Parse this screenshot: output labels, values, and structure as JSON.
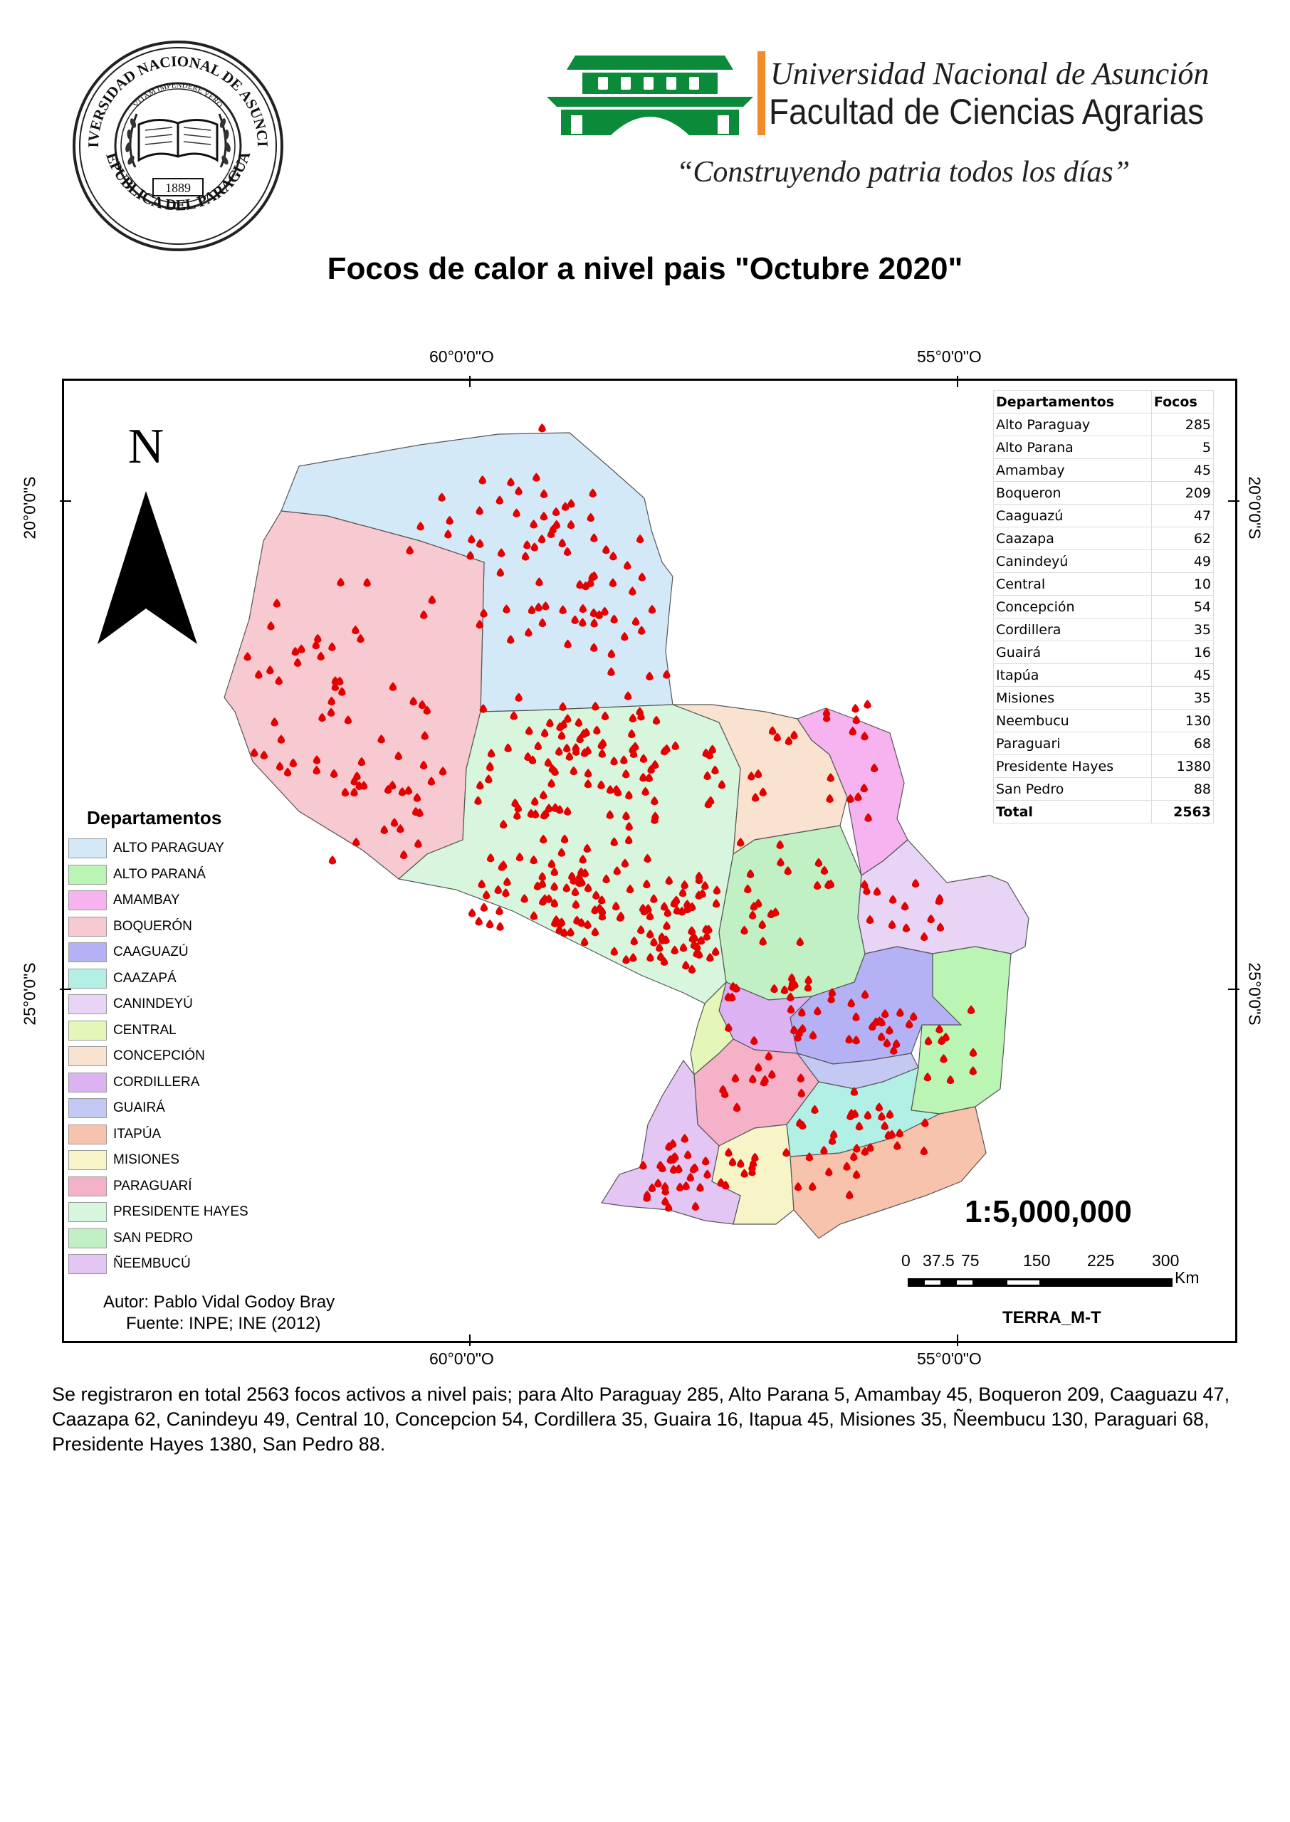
{
  "header": {
    "seal_ring_top": "UNIVERSIDAD NACIONAL DE ASUNCION",
    "seal_motto": "VITAM IMPENDERE VERO",
    "seal_bottom": "REPUBLICA DEL PARAGUAY",
    "seal_year": "1889",
    "university": "Universidad Nacional de Asunción",
    "faculty": "Facultad de Ciencias Agrarias",
    "motto": "“Construyendo patria todos los días”",
    "brand_green": "#0b8a3a",
    "brand_orange": "#f28c28"
  },
  "map": {
    "title": "Focos de calor a nivel pais \"Octubre 2020\"",
    "grid_labels": {
      "lon_60": "60°0'0\"O",
      "lon_55": "55°0'0\"O",
      "lat_20": "20°0'0\"S",
      "lat_25": "25°0'0\"S"
    },
    "north_label": "N",
    "hotspot_color": "#e30000",
    "scale": "1:5,000,000",
    "scalebar_ticks": [
      "0",
      "37.5",
      "75",
      "150",
      "225",
      "300"
    ],
    "scalebar_unit": "Km",
    "sensor": "TERRA_M-T",
    "author": "Autor: Pablo Vidal Godoy Bray",
    "source": "Fuente: INPE; INE (2012)"
  },
  "legend": {
    "title": "Departamentos",
    "items": [
      {
        "label": "ALTO PARAGUAY",
        "color": "#d4e9f8"
      },
      {
        "label": "ALTO PARANÁ",
        "color": "#baf5b4"
      },
      {
        "label": "AMAMBAY",
        "color": "#f6b3ef"
      },
      {
        "label": "BOQUERÓN",
        "color": "#f7c9d0"
      },
      {
        "label": "CAAGUAZÚ",
        "color": "#b4b1f4"
      },
      {
        "label": "CAAZAPÁ",
        "color": "#b2f0e6"
      },
      {
        "label": "CANINDEYÚ",
        "color": "#e8d5f6"
      },
      {
        "label": "CENTRAL",
        "color": "#e4f6b8"
      },
      {
        "label": "CONCEPCIÓN",
        "color": "#f9e2cf"
      },
      {
        "label": "CORDILLERA",
        "color": "#dcb2f2"
      },
      {
        "label": "GUAIRÁ",
        "color": "#c4c9f4"
      },
      {
        "label": "ITAPÚA",
        "color": "#f7c3ac"
      },
      {
        "label": "MISIONES",
        "color": "#f7f5c8"
      },
      {
        "label": "PARAGUARÍ",
        "color": "#f4b1c8"
      },
      {
        "label": "PRESIDENTE HAYES",
        "color": "#d7f6dd"
      },
      {
        "label": "SAN PEDRO",
        "color": "#c0f0c4"
      },
      {
        "label": "ÑEEMBUCÚ",
        "color": "#e3c6f4"
      }
    ]
  },
  "table": {
    "headers": [
      "Departamentos",
      "Focos"
    ],
    "rows": [
      {
        "name": "Alto Paraguay",
        "focos": "285"
      },
      {
        "name": "Alto Parana",
        "focos": "5"
      },
      {
        "name": "Amambay",
        "focos": "45"
      },
      {
        "name": "Boqueron",
        "focos": "209"
      },
      {
        "name": "Caaguazú",
        "focos": "47"
      },
      {
        "name": "Caazapa",
        "focos": "62"
      },
      {
        "name": "Canindeyú",
        "focos": "49"
      },
      {
        "name": "Central",
        "focos": "10"
      },
      {
        "name": "Concepción",
        "focos": "54"
      },
      {
        "name": "Cordillera",
        "focos": "35"
      },
      {
        "name": "Guairá",
        "focos": "16"
      },
      {
        "name": "Itapúa",
        "focos": "45"
      },
      {
        "name": "Misiones",
        "focos": "35"
      },
      {
        "name": "Neembucu",
        "focos": "130"
      },
      {
        "name": "Paraguari",
        "focos": "68"
      },
      {
        "name": "Presidente Hayes",
        "focos": "1380"
      },
      {
        "name": "San Pedro",
        "focos": "88"
      }
    ],
    "total_label": "Total",
    "total_value": "2563"
  },
  "summary": "Se registraron en total 2563  focos activos a nivel pais; para Alto Paraguay 285, Alto Parana 5, Amambay 45, Boqueron 209, Caaguazu 47, Caazapa 62, Canindeyu 49, Central 10, Concepcion 54, Cordillera 35, Guaira 16, Itapua 45, Misiones 35, Ñeembucu 130, Paraguari 68, Presidente Hayes 1380, San Pedro 88."
}
